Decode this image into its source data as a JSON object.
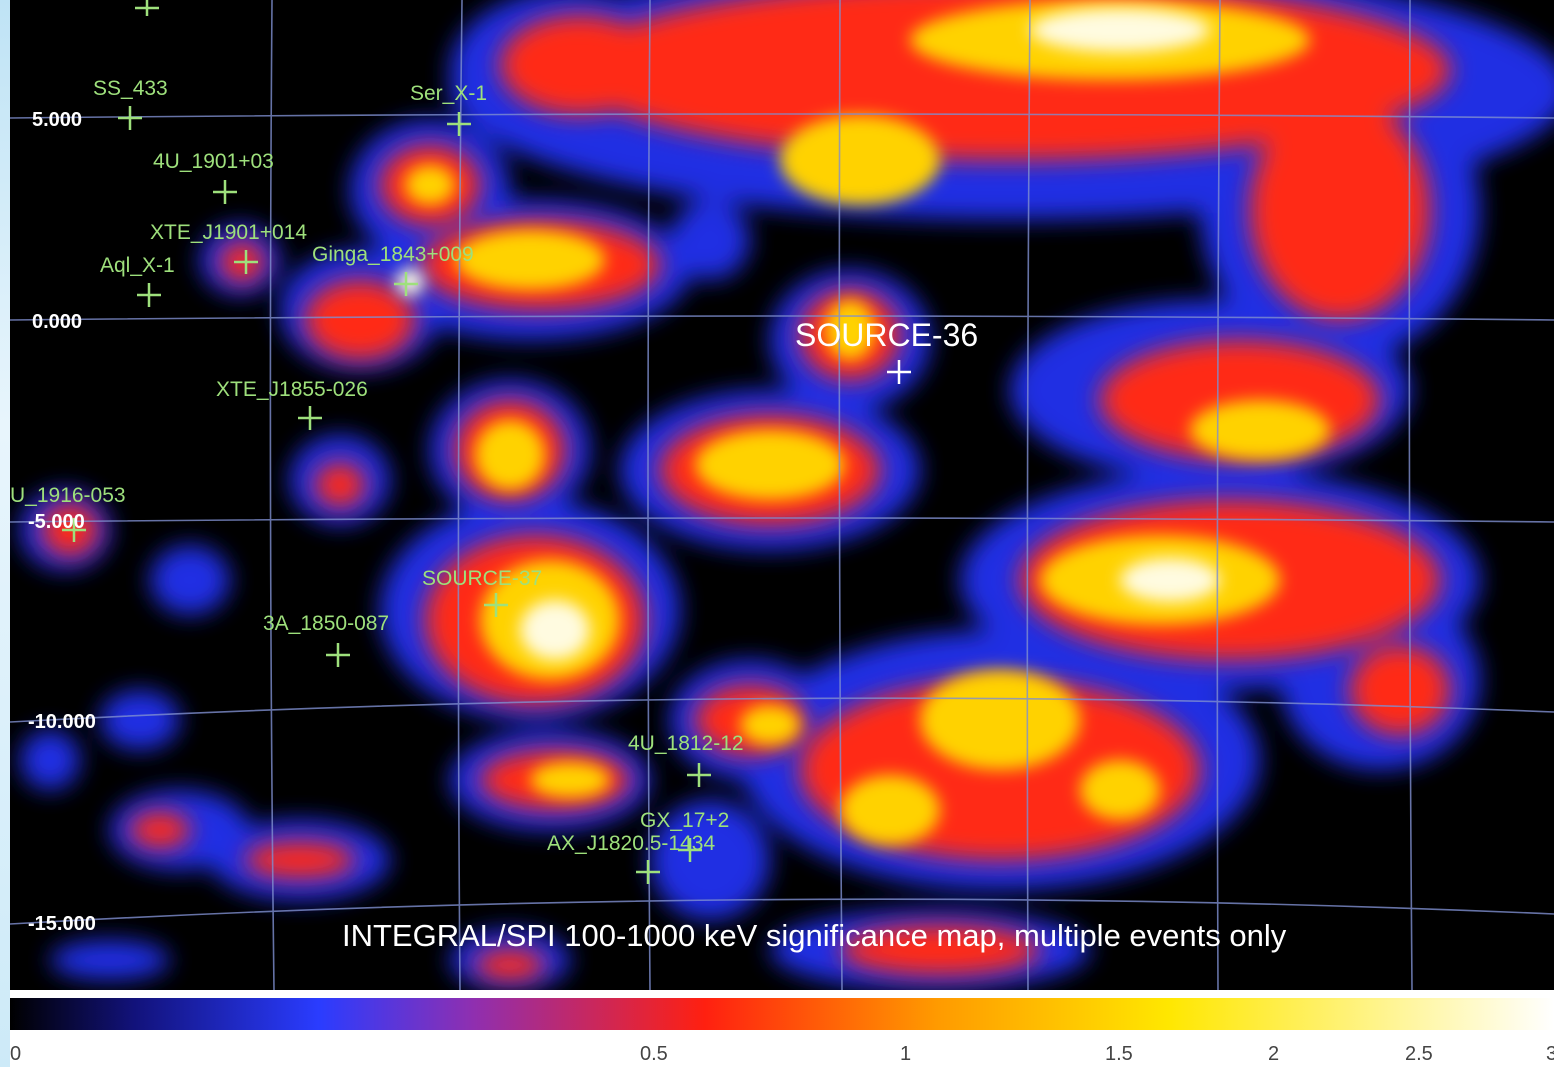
{
  "map_title": "INTEGRAL/SPI 100-1000 keV significance map, multiple events only",
  "dec_labels": [
    "5.000",
    "0.000",
    "-5.000",
    "-10.000",
    "-15.000"
  ],
  "sources": [
    {
      "name": "SS_433",
      "color": "green"
    },
    {
      "name": "Ser_X-1",
      "color": "green"
    },
    {
      "name": "4U_1901+03",
      "color": "green"
    },
    {
      "name": "XTE_J1901+014",
      "color": "green"
    },
    {
      "name": "Aql_X-1",
      "color": "green"
    },
    {
      "name": "Ginga_1843+009",
      "color": "green"
    },
    {
      "name": "XTE_J1855-026",
      "color": "green"
    },
    {
      "name": "U_1916-053",
      "color": "green"
    },
    {
      "name": "SOURCE-37",
      "color": "green"
    },
    {
      "name": "3A_1850-087",
      "color": "green"
    },
    {
      "name": "4U_1812-12",
      "color": "green"
    },
    {
      "name": "GX_17+2",
      "color": "green"
    },
    {
      "name": "AX_J1820.5-1434",
      "color": "green"
    },
    {
      "name": "SOURCE-36",
      "color": "white"
    }
  ],
  "colorbar": {
    "ticks": [
      "0",
      "0.5",
      "1",
      "1.5",
      "2",
      "2.5",
      "3"
    ],
    "colors": [
      "#000000",
      "#12127a",
      "#2a3cff",
      "#8f2fb0",
      "#ff2010",
      "#ff9a00",
      "#ffe700",
      "#ffffff"
    ]
  },
  "colors": {
    "source_label": "#9ee07c",
    "grid": "#7f8fd0"
  }
}
